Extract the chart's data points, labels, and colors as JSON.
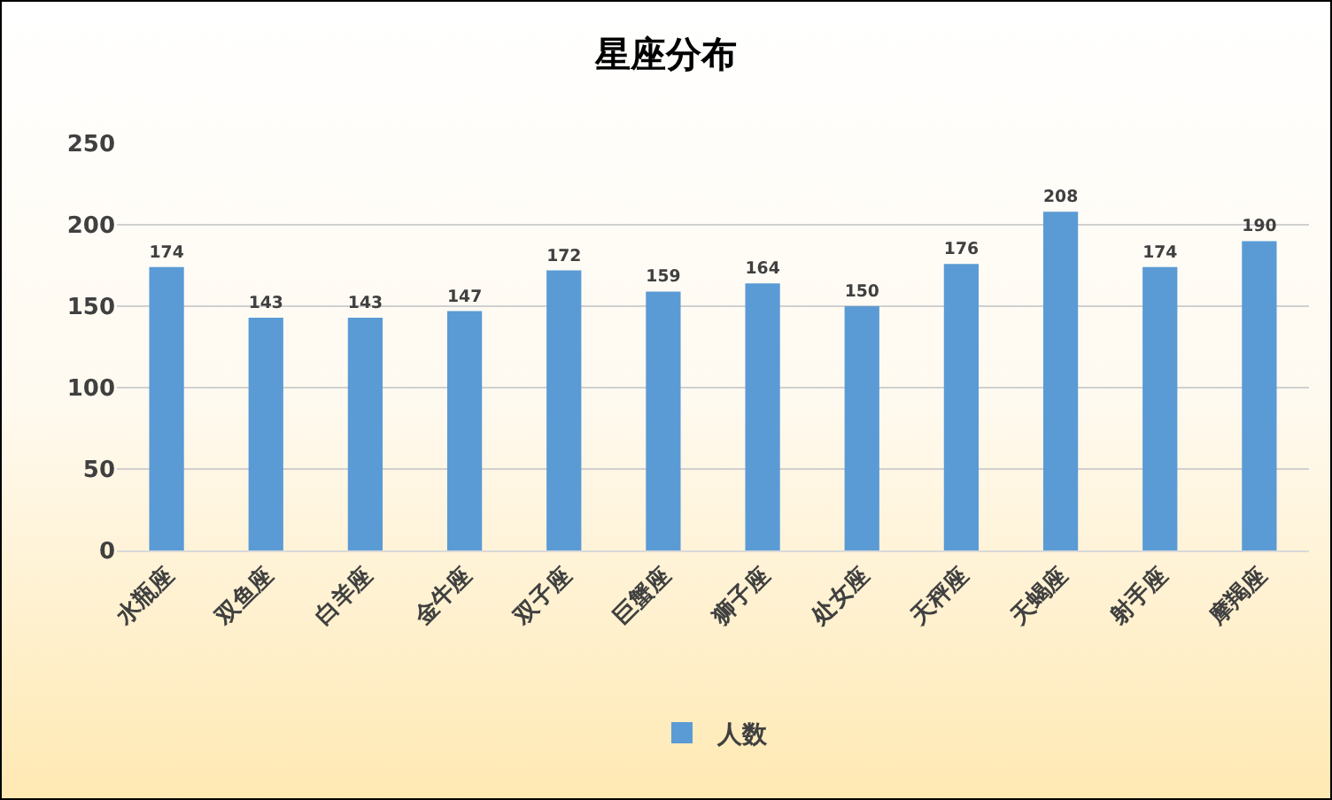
{
  "chart_data": {
    "type": "bar",
    "title": "星座分布",
    "categories": [
      "水瓶座",
      "双鱼座",
      "白羊座",
      "金牛座",
      "双子座",
      "巨蟹座",
      "狮子座",
      "处女座",
      "天秤座",
      "天蝎座",
      "射手座",
      "摩羯座"
    ],
    "series": [
      {
        "name": "人数",
        "color": "#5b9bd5",
        "values": [
          174,
          143,
          143,
          147,
          172,
          159,
          164,
          150,
          176,
          208,
          174,
          190
        ]
      }
    ],
    "ylim": [
      0,
      250
    ],
    "yticks": [
      0,
      50,
      100,
      150,
      200,
      250
    ],
    "grid": "y",
    "legend": "bottom",
    "data_labels": true
  }
}
